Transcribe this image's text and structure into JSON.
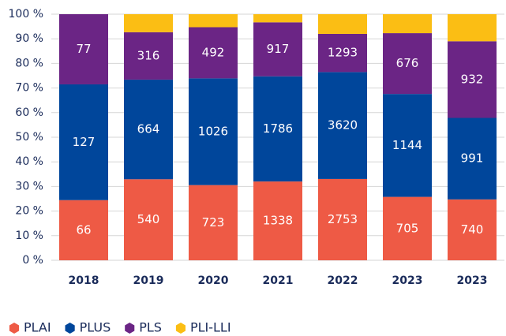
{
  "chart_data": {
    "type": "bar",
    "stack": "percent",
    "categories": [
      "2018",
      "2019",
      "2020",
      "2021",
      "2022",
      "2023",
      "2023"
    ],
    "series": [
      {
        "name": "PLAI",
        "color": "#ee5a45",
        "values": [
          66,
          540,
          723,
          1338,
          2753,
          705,
          740
        ]
      },
      {
        "name": "PLUS",
        "color": "#00469b",
        "values": [
          127,
          664,
          1026,
          1786,
          3620,
          1144,
          991
        ]
      },
      {
        "name": "PLS",
        "color": "#6b2585",
        "values": [
          77,
          316,
          492,
          917,
          1293,
          676,
          932
        ]
      },
      {
        "name": "PLI-LLI",
        "color": "#fbbe14",
        "values": [
          0,
          120,
          125,
          138,
          667,
          211,
          329
        ],
        "show_labels": false
      }
    ],
    "ylim": [
      0,
      100
    ],
    "yticks": [
      {
        "value": 0,
        "label": "0 %"
      },
      {
        "value": 10,
        "label": "10 %"
      },
      {
        "value": 20,
        "label": "20 %"
      },
      {
        "value": 30,
        "label": "30 %"
      },
      {
        "value": 40,
        "label": "40 %"
      },
      {
        "value": 50,
        "label": "50 %"
      },
      {
        "value": 60,
        "label": "60 %"
      },
      {
        "value": 70,
        "label": "70 %"
      },
      {
        "value": 80,
        "label": "80 %"
      },
      {
        "value": 90,
        "label": "90 %"
      },
      {
        "value": 100,
        "label": "100 %"
      }
    ],
    "grid": true,
    "legend": "bottom-left"
  }
}
